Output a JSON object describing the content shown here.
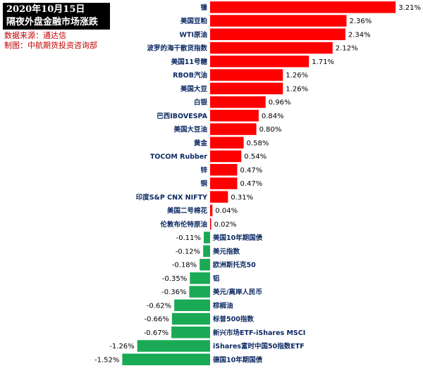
{
  "header": {
    "title_line1": "2020年10月15日",
    "title_line2": "隔夜外盘金融市场涨跌",
    "source": "数据来源：通达信",
    "maker": "制图：中航期货投资咨询部"
  },
  "colors": {
    "positive": "#ff0000",
    "negative": "#1aaa55",
    "title_bg": "#000000",
    "note_text": "#c00000"
  },
  "chart_data": {
    "type": "bar",
    "orientation": "horizontal",
    "categories": [
      "镍",
      "美国豆粕",
      "WTI原油",
      "波罗的海干散货指数",
      "美国11号糖",
      "RBOB汽油",
      "美国大豆",
      "白银",
      "巴西IBOVESPA",
      "美国大豆油",
      "黄金",
      "TOCOM Rubber",
      "锌",
      "铜",
      "印度S&P CNX NIFTY",
      "美国二号棉花",
      "伦敦布伦特原油",
      "美国10年期国债",
      "美元指数",
      "欧洲斯托克50",
      "铝",
      "美元/离岸人民币",
      "棕榈油",
      "标普500指数",
      "新兴市场ETF-iShares MSCI",
      "iShares富时中国50指数ETF",
      "德国10年期国债"
    ],
    "values": [
      3.21,
      2.36,
      2.34,
      2.12,
      1.71,
      1.26,
      1.26,
      0.96,
      0.84,
      0.8,
      0.58,
      0.54,
      0.47,
      0.47,
      0.31,
      0.04,
      0.02,
      -0.11,
      -0.12,
      -0.18,
      -0.35,
      -0.36,
      -0.62,
      -0.66,
      -0.67,
      -1.26,
      -1.52
    ],
    "labels": [
      "3.21%",
      "2.36%",
      "2.34%",
      "2.12%",
      "1.71%",
      "1.26%",
      "1.26%",
      "0.96%",
      "0.84%",
      "0.80%",
      "0.58%",
      "0.54%",
      "0.47%",
      "0.47%",
      "0.31%",
      "0.04%",
      "0.02%",
      "-0.11%",
      "-0.12%",
      "-0.18%",
      "-0.35%",
      "-0.36%",
      "-0.62%",
      "-0.66%",
      "-0.67%",
      "-1.26%",
      "-1.52%"
    ],
    "unit": "%",
    "grid": false,
    "legend": "none"
  }
}
